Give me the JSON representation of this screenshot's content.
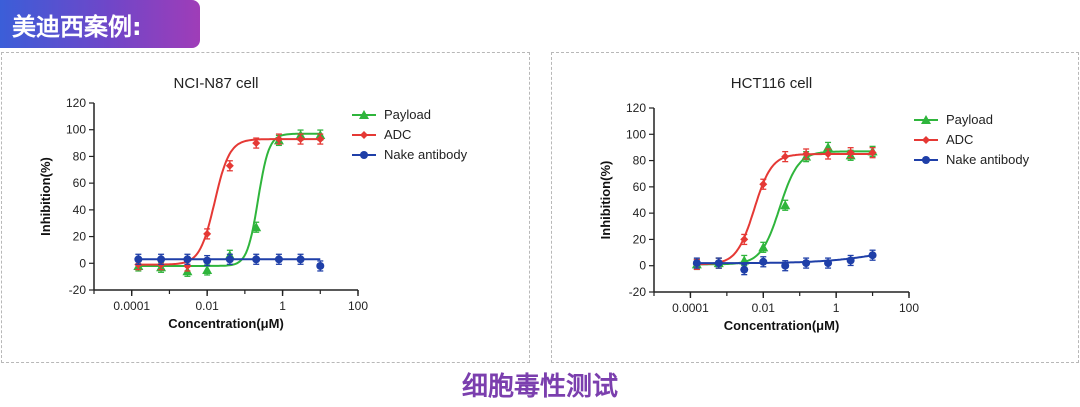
{
  "header": {
    "title": "美迪西案例:"
  },
  "caption": "细胞毒性测试",
  "colors": {
    "Payload": "#2fb53c",
    "ADC": "#e53935",
    "Nake antibody": "#1f3fa8"
  },
  "chart_data": [
    {
      "type": "scatter",
      "title": "NCI-N87 cell",
      "xlabel": "Concentration(μM)",
      "ylabel": "Inhibition(%)",
      "xscale": "log",
      "xlim": [
        1e-05,
        100
      ],
      "ylim": [
        -20,
        120
      ],
      "xticks": [
        "0.0001",
        "0.01",
        "1",
        "100"
      ],
      "yticks": [
        -20,
        0,
        20,
        40,
        60,
        80,
        100,
        120
      ],
      "legend": "top-right",
      "series": [
        {
          "name": "Payload",
          "marker": "triangle",
          "x": [
            0.00015,
            0.0006,
            0.003,
            0.01,
            0.04,
            0.2,
            0.8,
            3,
            10
          ],
          "y": [
            -2,
            -3,
            -6,
            -5,
            6,
            27,
            92,
            96,
            96
          ],
          "curve": {
            "bottom": -2,
            "top": 97,
            "logEC50": -0.65,
            "hill": 3.0
          }
        },
        {
          "name": "ADC",
          "marker": "diamond",
          "x": [
            0.00015,
            0.0006,
            0.003,
            0.01,
            0.04,
            0.2,
            0.8,
            3,
            10
          ],
          "y": [
            -1,
            -1,
            -2,
            22,
            73,
            90,
            93,
            93,
            93
          ],
          "curve": {
            "bottom": -1,
            "top": 93,
            "logEC50": -1.8,
            "hill": 2.2
          }
        },
        {
          "name": "Nake antibody",
          "marker": "circle",
          "x": [
            0.00015,
            0.0006,
            0.003,
            0.01,
            0.04,
            0.2,
            0.8,
            3,
            10
          ],
          "y": [
            3,
            3,
            3,
            2,
            3,
            3,
            3,
            3,
            -2
          ],
          "curve": {
            "bottom": 3,
            "top": 3,
            "logEC50": 0,
            "hill": 1
          }
        }
      ]
    },
    {
      "type": "scatter",
      "title": "HCT116 cell",
      "xlabel": "Concentration(μM)",
      "ylabel": "Inhibition(%)",
      "xscale": "log",
      "xlim": [
        1e-05,
        100
      ],
      "ylim": [
        -20,
        120
      ],
      "xticks": [
        "0.0001",
        "0.01",
        "1",
        "100"
      ],
      "yticks": [
        -20,
        0,
        20,
        40,
        60,
        80,
        100,
        120
      ],
      "legend": "top-right",
      "series": [
        {
          "name": "Payload",
          "marker": "triangle",
          "x": [
            0.00015,
            0.0006,
            0.003,
            0.01,
            0.04,
            0.15,
            0.6,
            2.5,
            10
          ],
          "y": [
            1,
            2,
            4,
            14,
            46,
            83,
            90,
            84,
            87
          ],
          "curve": {
            "bottom": 1,
            "top": 87,
            "logEC50": -1.55,
            "hill": 1.7
          }
        },
        {
          "name": "ADC",
          "marker": "diamond",
          "x": [
            0.00015,
            0.0006,
            0.003,
            0.01,
            0.04,
            0.15,
            0.6,
            2.5,
            10
          ],
          "y": [
            1,
            2,
            20,
            62,
            83,
            85,
            85,
            86,
            86
          ],
          "curve": {
            "bottom": 1,
            "top": 85,
            "logEC50": -2.25,
            "hill": 1.8
          }
        },
        {
          "name": "Nake antibody",
          "marker": "circle",
          "x": [
            0.00015,
            0.0006,
            0.003,
            0.01,
            0.04,
            0.15,
            0.6,
            2.5,
            10
          ],
          "y": [
            2,
            2,
            -3,
            3,
            0,
            2,
            2,
            4,
            8
          ],
          "curve": {
            "bottom": 2,
            "top": 2,
            "logEC50": 0,
            "hill": 1,
            "linear_end": 8
          }
        }
      ]
    }
  ]
}
